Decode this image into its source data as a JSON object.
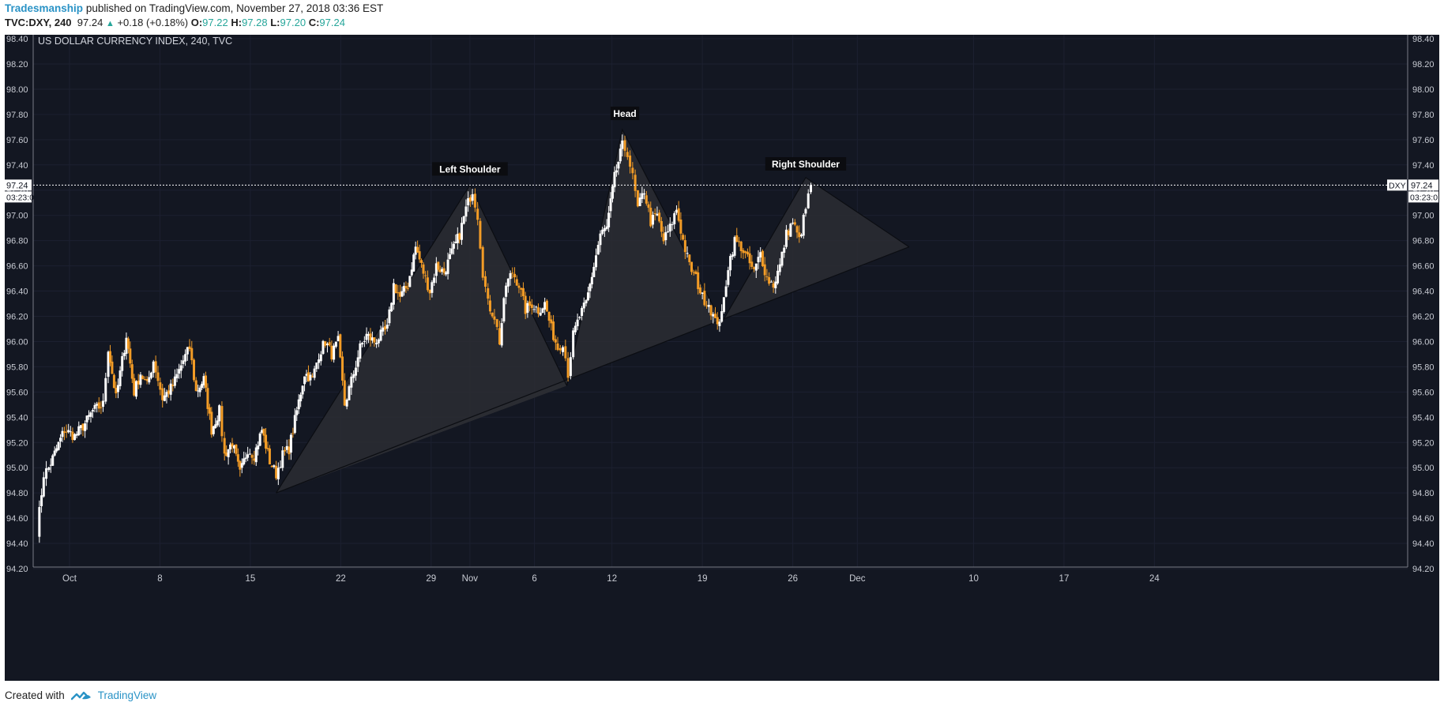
{
  "header": {
    "author": "Tradesmanship",
    "published_text": "published on TradingView.com, November 27, 2018 03:36 EST",
    "symbol": "TVC:DXY, 240",
    "last": "97.24",
    "change": "+0.18 (+0.18%)",
    "o_label": "O:",
    "o_value": "97.22",
    "h_label": "H:",
    "h_value": "97.28",
    "l_label": "L:",
    "l_value": "97.20",
    "c_label": "C:",
    "c_value": "97.24"
  },
  "footer": {
    "created_with": "Created with",
    "brand": "TradingView"
  },
  "colors": {
    "background": "#131722",
    "up": "#ffffff",
    "down": "#f39c26",
    "pattern_fill": "#2b2d33",
    "accent": "#2a93c6"
  },
  "chart_data": {
    "type": "candlestick",
    "title": "US DOLLAR CURRENCY INDEX, 240, TVC",
    "yticks": [
      "98.40",
      "98.20",
      "98.00",
      "97.80",
      "97.60",
      "97.40",
      "97.20",
      "97.00",
      "96.80",
      "96.60",
      "96.40",
      "96.20",
      "96.00",
      "95.80",
      "95.60",
      "95.40",
      "95.20",
      "95.00",
      "94.80",
      "94.60",
      "94.40",
      "94.20"
    ],
    "ylim": [
      94.2,
      98.45
    ],
    "xticks": [
      {
        "label": "Oct",
        "day": 0
      },
      {
        "label": "8",
        "day": 7
      },
      {
        "label": "15",
        "day": 14
      },
      {
        "label": "22",
        "day": 21
      },
      {
        "label": "29",
        "day": 28
      },
      {
        "label": "Nov",
        "day": 31
      },
      {
        "label": "6",
        "day": 36
      },
      {
        "label": "12",
        "day": 42
      },
      {
        "label": "19",
        "day": 49
      },
      {
        "label": "26",
        "day": 56
      },
      {
        "label": "Dec",
        "day": 61
      },
      {
        "label": "10",
        "day": 70
      },
      {
        "label": "17",
        "day": 77
      },
      {
        "label": "24",
        "day": 84
      }
    ],
    "xlim": [
      -3.5,
      87.5
    ],
    "current_price": {
      "value": 97.24,
      "label": "97.24",
      "time": "03:23:0",
      "symbol": "DXY"
    },
    "annotations": [
      {
        "text": "Left Shoulder",
        "day": 31,
        "value": 97.24
      },
      {
        "text": "Head",
        "day": 43,
        "value": 97.68
      },
      {
        "text": "Right Shoulder",
        "day": 57,
        "value": 97.28
      }
    ],
    "pattern": {
      "left_shoulder": [
        [
          16,
          94.8
        ],
        [
          31,
          97.24
        ],
        [
          38.5,
          95.65
        ]
      ],
      "head": [
        [
          38.5,
          95.65
        ],
        [
          42.8,
          97.68
        ],
        [
          50.5,
          96.15
        ]
      ],
      "right_shoulder": [
        [
          50.5,
          96.15
        ],
        [
          57,
          97.3
        ],
        [
          65,
          96.75
        ]
      ],
      "neckline": [
        [
          16,
          94.8
        ],
        [
          65,
          96.75
        ]
      ]
    },
    "anchors": [
      [
        -2.5,
        94.5
      ],
      [
        -2,
        94.95
      ],
      [
        -1.6,
        95.0
      ],
      [
        -1,
        95.15
      ],
      [
        -0.4,
        95.3
      ],
      [
        0.4,
        95.25
      ],
      [
        1.2,
        95.35
      ],
      [
        1.8,
        95.45
      ],
      [
        2.6,
        95.5
      ],
      [
        3,
        95.95
      ],
      [
        3.6,
        95.55
      ],
      [
        4.4,
        96.05
      ],
      [
        5,
        95.6
      ],
      [
        5.5,
        95.75
      ],
      [
        6,
        95.65
      ],
      [
        6.5,
        95.85
      ],
      [
        7.2,
        95.55
      ],
      [
        8,
        95.65
      ],
      [
        8.8,
        95.85
      ],
      [
        9.3,
        95.95
      ],
      [
        9.8,
        95.6
      ],
      [
        10.4,
        95.7
      ],
      [
        11,
        95.3
      ],
      [
        11.6,
        95.45
      ],
      [
        12,
        95.1
      ],
      [
        12.6,
        95.2
      ],
      [
        13.2,
        94.95
      ],
      [
        13.8,
        95.15
      ],
      [
        14.3,
        95.1
      ],
      [
        14.9,
        95.3
      ],
      [
        15.5,
        95.05
      ],
      [
        16,
        94.95
      ],
      [
        16.5,
        95.1
      ],
      [
        17,
        95.15
      ],
      [
        17.6,
        95.45
      ],
      [
        18.2,
        95.75
      ],
      [
        18.8,
        95.7
      ],
      [
        19.3,
        95.9
      ],
      [
        19.8,
        96.0
      ],
      [
        20.3,
        95.9
      ],
      [
        20.8,
        96.0
      ],
      [
        21.3,
        95.5
      ],
      [
        22,
        95.75
      ],
      [
        22.5,
        95.95
      ],
      [
        23,
        96.05
      ],
      [
        23.6,
        96.0
      ],
      [
        24.1,
        96.05
      ],
      [
        24.6,
        96.1
      ],
      [
        25.1,
        96.45
      ],
      [
        25.6,
        96.35
      ],
      [
        26.2,
        96.45
      ],
      [
        26.8,
        96.75
      ],
      [
        27.4,
        96.55
      ],
      [
        27.9,
        96.4
      ],
      [
        28.4,
        96.6
      ],
      [
        29,
        96.55
      ],
      [
        29.6,
        96.7
      ],
      [
        30.2,
        96.85
      ],
      [
        30.7,
        97.05
      ],
      [
        31.2,
        97.2
      ],
      [
        31.6,
        97.0
      ],
      [
        32,
        96.55
      ],
      [
        32.4,
        96.3
      ],
      [
        32.9,
        96.2
      ],
      [
        33.3,
        96.0
      ],
      [
        33.8,
        96.45
      ],
      [
        34.3,
        96.55
      ],
      [
        34.8,
        96.45
      ],
      [
        35.3,
        96.25
      ],
      [
        35.8,
        96.3
      ],
      [
        36.3,
        96.25
      ],
      [
        36.8,
        96.3
      ],
      [
        37.3,
        96.1
      ],
      [
        37.8,
        95.95
      ],
      [
        38.2,
        96.0
      ],
      [
        38.6,
        95.75
      ],
      [
        39,
        96.05
      ],
      [
        39.5,
        96.2
      ],
      [
        40,
        96.3
      ],
      [
        40.6,
        96.6
      ],
      [
        41.1,
        96.85
      ],
      [
        41.6,
        96.9
      ],
      [
        42.2,
        97.3
      ],
      [
        42.8,
        97.55
      ],
      [
        43.2,
        97.5
      ],
      [
        43.6,
        97.3
      ],
      [
        44,
        97.05
      ],
      [
        44.5,
        97.2
      ],
      [
        45,
        96.95
      ],
      [
        45.5,
        97.0
      ],
      [
        46,
        96.8
      ],
      [
        46.5,
        96.9
      ],
      [
        47,
        97.05
      ],
      [
        47.5,
        96.8
      ],
      [
        48,
        96.6
      ],
      [
        48.5,
        96.5
      ],
      [
        49,
        96.35
      ],
      [
        49.5,
        96.3
      ],
      [
        50,
        96.15
      ],
      [
        50.5,
        96.2
      ],
      [
        51,
        96.6
      ],
      [
        51.5,
        96.8
      ],
      [
        52,
        96.75
      ],
      [
        52.5,
        96.65
      ],
      [
        53,
        96.55
      ],
      [
        53.5,
        96.7
      ],
      [
        54,
        96.5
      ],
      [
        54.5,
        96.45
      ],
      [
        55,
        96.6
      ],
      [
        55.5,
        96.85
      ],
      [
        56,
        96.95
      ],
      [
        56.5,
        96.8
      ],
      [
        57,
        97.05
      ],
      [
        57.4,
        97.24
      ]
    ]
  }
}
